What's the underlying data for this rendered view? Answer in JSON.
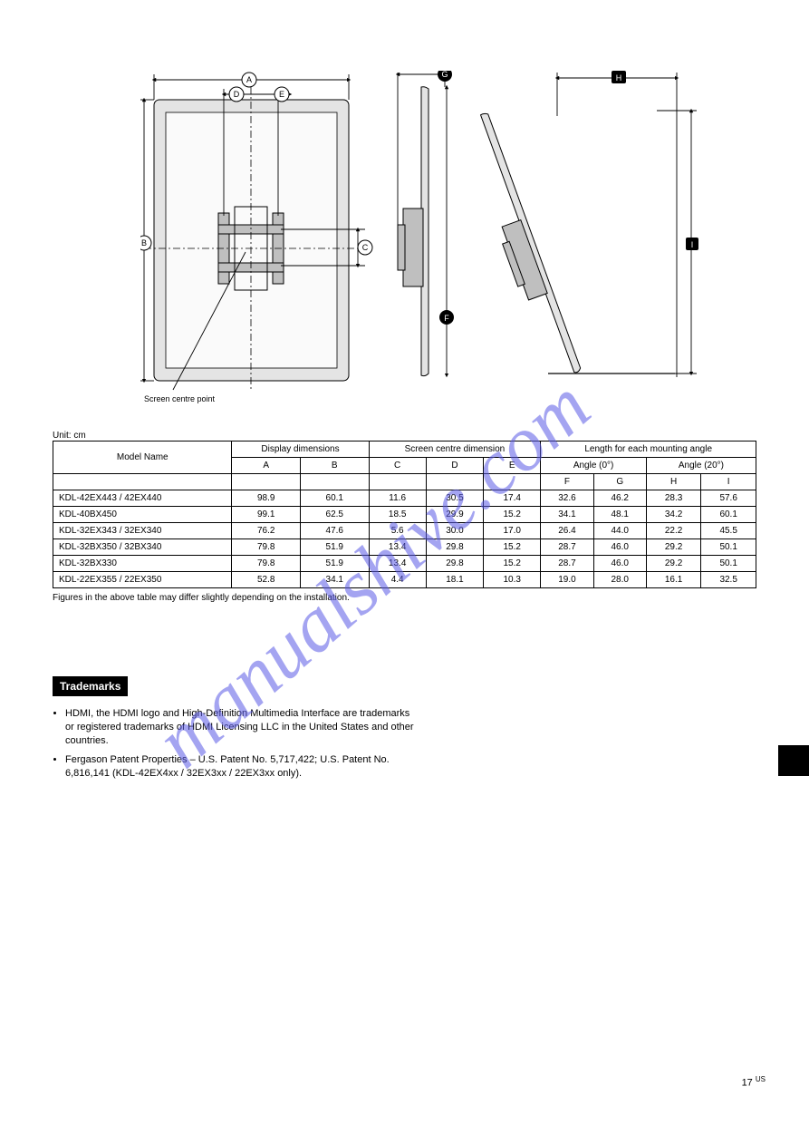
{
  "watermark": "manualshive.com",
  "diagram": {
    "centerpoint_label": "Screen centre point",
    "labels": [
      "A",
      "B",
      "C",
      "D",
      "E",
      "F",
      "G",
      "H",
      "I"
    ]
  },
  "table": {
    "unit_note": "Unit: cm",
    "header": {
      "model": "Model Name",
      "disp": "Display dimensions",
      "centre": "Screen centre dimension",
      "length": "Length for each mounting angle",
      "angle0": "Angle (0°)",
      "angle20": "Angle (20°)",
      "cols": [
        "A",
        "B",
        "C",
        "D",
        "E",
        "F",
        "G",
        "H",
        "I"
      ]
    },
    "rows": [
      {
        "model": "KDL-42EX443 / 42EX440",
        "A": "98.9",
        "B": "60.1",
        "C": "11.6",
        "D": "30.5",
        "E": "17.4",
        "F": "32.6",
        "G": "46.2",
        "H": "28.3",
        "I": "57.6"
      },
      {
        "model": "KDL-40BX450",
        "A": "99.1",
        "B": "62.5",
        "C": "18.5",
        "D": "29.9",
        "E": "15.2",
        "F": "34.1",
        "G": "48.1",
        "H": "34.2",
        "I": "60.1"
      },
      {
        "model": "KDL-32EX343 / 32EX340",
        "A": "76.2",
        "B": "47.6",
        "C": "5.6",
        "D": "30.0",
        "E": "17.0",
        "F": "26.4",
        "G": "44.0",
        "H": "22.2",
        "I": "45.5"
      },
      {
        "model": "KDL-32BX350 / 32BX340",
        "A": "79.8",
        "B": "51.9",
        "C": "13.4",
        "D": "29.8",
        "E": "15.2",
        "F": "28.7",
        "G": "46.0",
        "H": "29.2",
        "I": "50.1"
      },
      {
        "model": "KDL-32BX330",
        "A": "79.8",
        "B": "51.9",
        "C": "13.4",
        "D": "29.8",
        "E": "15.2",
        "F": "28.7",
        "G": "46.0",
        "H": "29.2",
        "I": "50.1"
      },
      {
        "model": "KDL-22EX355 / 22EX350",
        "A": "52.8",
        "B": "34.1",
        "C": "4.4",
        "D": "18.1",
        "E": "10.3",
        "F": "19.0",
        "G": "28.0",
        "H": "16.1",
        "I": "32.5"
      }
    ],
    "footnote": "Figures in the above table may differ slightly depending on the installation."
  },
  "trademarks": {
    "title": "Trademarks",
    "items": [
      "HDMI, the HDMI logo and High-Definition Multimedia Interface are trademarks or registered trademarks of HDMI Licensing LLC in the United States and other countries.",
      "Fergason Patent Properties – U.S. Patent No. 5,717,422; U.S. Patent No. 6,816,141 (KDL-42EX4xx / 32EX3xx / 22EX3xx only)."
    ]
  },
  "page": {
    "num": "17",
    "lang": "US"
  }
}
